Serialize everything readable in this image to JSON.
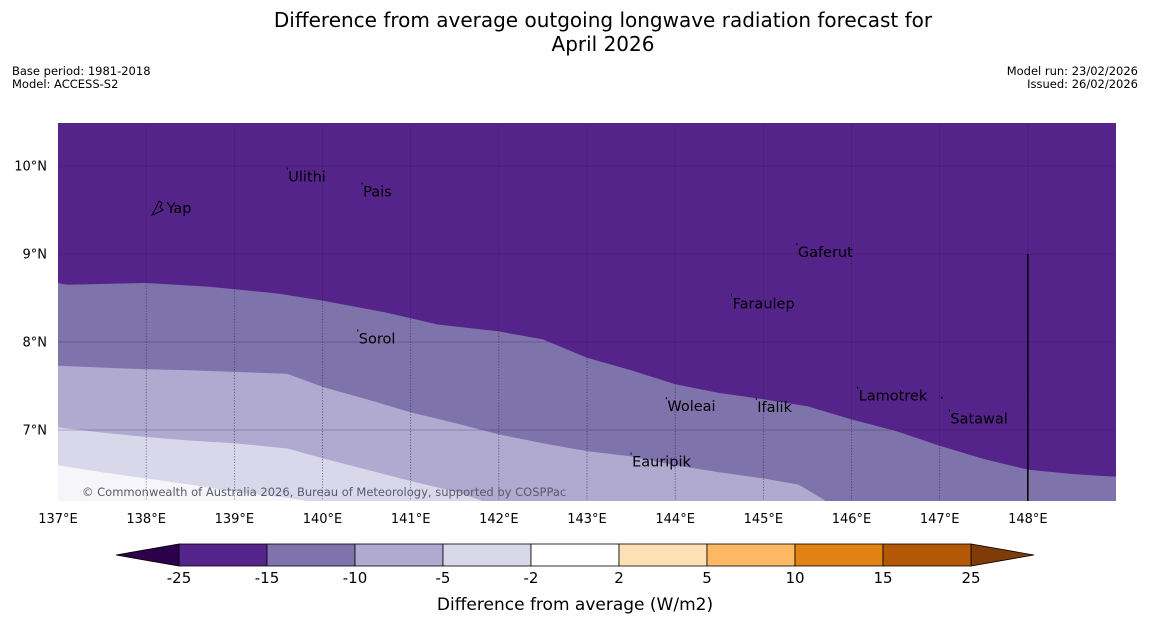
{
  "title": {
    "line1": "Difference from average outgoing longwave radiation forecast for",
    "line2": "April 2026"
  },
  "meta_left": {
    "base_period": "Base period: 1981-2018",
    "model": "Model: ACCESS-S2"
  },
  "meta_right": {
    "model_run": "Model run: 23/02/2026",
    "issued": "Issued: 26/02/2026"
  },
  "map": {
    "lon_range": [
      137,
      149
    ],
    "lat_range": [
      6.2,
      10.5
    ],
    "lon_ticks": [
      {
        "value": 137,
        "label": "137°E"
      },
      {
        "value": 138,
        "label": "138°E"
      },
      {
        "value": 139,
        "label": "139°E"
      },
      {
        "value": 140,
        "label": "140°E"
      },
      {
        "value": 141,
        "label": "141°E"
      },
      {
        "value": 142,
        "label": "142°E"
      },
      {
        "value": 143,
        "label": "143°E"
      },
      {
        "value": 144,
        "label": "144°E"
      },
      {
        "value": 145,
        "label": "145°E"
      },
      {
        "value": 146,
        "label": "146°E"
      },
      {
        "value": 147,
        "label": "147°E"
      },
      {
        "value": 148,
        "label": "148°E"
      }
    ],
    "lat_ticks": [
      {
        "value": 10,
        "label": "10°N"
      },
      {
        "value": 9,
        "label": "9°N"
      },
      {
        "value": 8,
        "label": "8°N"
      },
      {
        "value": 7,
        "label": "7°N"
      }
    ],
    "meridian_line_lon": 148,
    "meridian_line_lat_top": 9,
    "bands": [
      {
        "name": "-25 to -15",
        "color": "#54248a",
        "boundary": []
      },
      {
        "name": "-15 to -10",
        "color": "#7f73ab",
        "boundary": [
          [
            137,
            8.67
          ],
          [
            137.1,
            8.65
          ],
          [
            138,
            8.67
          ],
          [
            138.7,
            8.63
          ],
          [
            139.5,
            8.55
          ],
          [
            140,
            8.47
          ],
          [
            140.7,
            8.34
          ],
          [
            141.3,
            8.2
          ],
          [
            142,
            8.12
          ],
          [
            142.5,
            8.03
          ],
          [
            143,
            7.82
          ],
          [
            143.5,
            7.68
          ],
          [
            144,
            7.52
          ],
          [
            144.5,
            7.42
          ],
          [
            145,
            7.35
          ],
          [
            145.5,
            7.27
          ],
          [
            146,
            7.12
          ],
          [
            146.5,
            6.99
          ],
          [
            147,
            6.82
          ],
          [
            147.5,
            6.67
          ],
          [
            148,
            6.55
          ],
          [
            148.5,
            6.5
          ],
          [
            148.8,
            6.48
          ],
          [
            149,
            6.47
          ]
        ]
      },
      {
        "name": "-10 to -5",
        "color": "#b0aad1",
        "boundary": [
          [
            137,
            7.73
          ],
          [
            138,
            7.69
          ],
          [
            138.5,
            7.68
          ],
          [
            139,
            7.66
          ],
          [
            139.6,
            7.64
          ],
          [
            140,
            7.49
          ],
          [
            140.5,
            7.35
          ],
          [
            141,
            7.2
          ],
          [
            141.5,
            7.08
          ],
          [
            142,
            6.95
          ],
          [
            142.5,
            6.85
          ],
          [
            143,
            6.76
          ],
          [
            143.5,
            6.7
          ],
          [
            144,
            6.6
          ],
          [
            144.5,
            6.52
          ],
          [
            145,
            6.45
          ],
          [
            145.4,
            6.38
          ],
          [
            145.7,
            6.2
          ]
        ]
      },
      {
        "name": "-5 to -2",
        "color": "#d9d8eb",
        "boundary": [
          [
            137,
            7.03
          ],
          [
            137.5,
            6.97
          ],
          [
            138,
            6.92
          ],
          [
            138.5,
            6.88
          ],
          [
            139,
            6.85
          ],
          [
            139.6,
            6.79
          ],
          [
            140,
            6.68
          ],
          [
            140.5,
            6.55
          ],
          [
            141,
            6.42
          ],
          [
            141.5,
            6.3
          ],
          [
            141.8,
            6.2
          ]
        ]
      },
      {
        "name": "-2 to 2",
        "color": "#f6f6fa",
        "boundary": [
          [
            137,
            6.6
          ],
          [
            137.5,
            6.52
          ],
          [
            138,
            6.45
          ],
          [
            138.5,
            6.38
          ],
          [
            139,
            6.3
          ],
          [
            139.5,
            6.24
          ],
          [
            139.8,
            6.2
          ]
        ]
      }
    ],
    "places": [
      {
        "name": "Ulithi",
        "lon": 139.6,
        "lat": 9.88
      },
      {
        "name": "Pais",
        "lon": 140.45,
        "lat": 9.71
      },
      {
        "name": "Yap",
        "lon": 138.22,
        "lat": 9.52
      },
      {
        "name": "Gaferut",
        "lon": 145.38,
        "lat": 9.02
      },
      {
        "name": "Faraulep",
        "lon": 144.64,
        "lat": 8.44
      },
      {
        "name": "Sorol",
        "lon": 140.4,
        "lat": 8.04
      },
      {
        "name": "Lamotrek",
        "lon": 146.07,
        "lat": 7.39
      },
      {
        "name": "Woleai",
        "lon": 143.9,
        "lat": 7.27
      },
      {
        "name": "Ifalik",
        "lon": 144.92,
        "lat": 7.26
      },
      {
        "name": "Satawal",
        "lon": 147.11,
        "lat": 7.13
      },
      {
        "name": "Eauripik",
        "lon": 143.5,
        "lat": 6.64
      }
    ],
    "copyright": "© Commonwealth of Australia 2026, Bureau of Meteorology, supported by COSPPac"
  },
  "colorbar": {
    "title": "Difference from average (W/m2)",
    "under_color": "#2d004b",
    "over_color": "#7f3b08",
    "segments": [
      {
        "from": -25,
        "to": -15,
        "color": "#54248a"
      },
      {
        "from": -15,
        "to": -10,
        "color": "#7f73ab"
      },
      {
        "from": -10,
        "to": -5,
        "color": "#b0aad1"
      },
      {
        "from": -5,
        "to": -2,
        "color": "#d9d8eb"
      },
      {
        "from": -2,
        "to": 2,
        "color": "#ffffff"
      },
      {
        "from": 2,
        "to": 5,
        "color": "#fee0b6"
      },
      {
        "from": 5,
        "to": 10,
        "color": "#fdb863"
      },
      {
        "from": 10,
        "to": 15,
        "color": "#e08214"
      },
      {
        "from": 15,
        "to": 25,
        "color": "#b35806"
      }
    ],
    "tick_labels": [
      "-25",
      "-15",
      "-10",
      "-5",
      "-2",
      "2",
      "5",
      "10",
      "15",
      "25"
    ]
  },
  "colors": {
    "gridline": "#2a1645",
    "text": "#000000"
  }
}
